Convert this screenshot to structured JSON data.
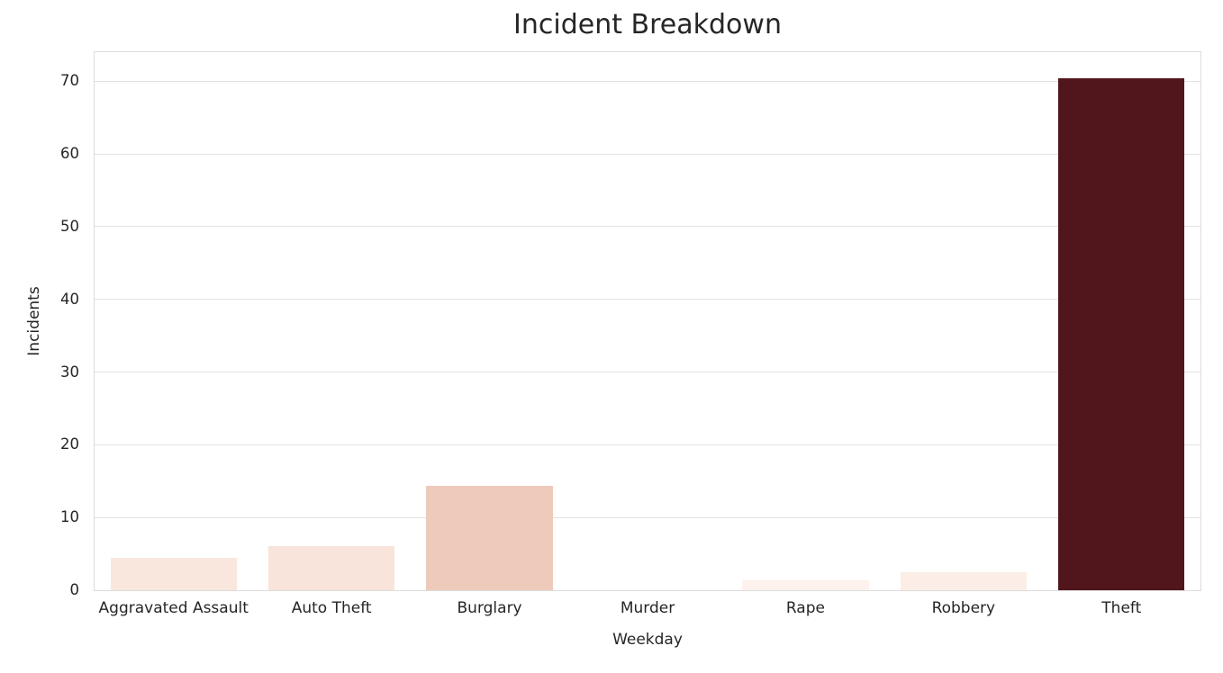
{
  "chart_data": {
    "type": "bar",
    "title": "Incident Breakdown",
    "xlabel": "Weekday",
    "ylabel": "Incidents",
    "categories": [
      "Aggravated Assault",
      "Auto Theft",
      "Burglary",
      "Murder",
      "Rape",
      "Robbery",
      "Theft"
    ],
    "values": [
      4.4,
      6.1,
      14.3,
      0,
      1.4,
      2.5,
      70.4
    ],
    "bar_colors": [
      "#f9e7dd",
      "#f8e4da",
      "#eecabb",
      "#fff5f0",
      "#fdf2ec",
      "#fceee6",
      "#51161c"
    ],
    "ylim": [
      0,
      74
    ],
    "yticks": [
      0,
      10,
      20,
      30,
      40,
      50,
      60,
      70
    ],
    "grid": true,
    "legend": false,
    "bar_width_ratio": 0.8,
    "colors": {
      "background": "#ffffff",
      "grid": "#e2e2e2",
      "spine": "#dcdcdc",
      "text": "#262626"
    }
  }
}
